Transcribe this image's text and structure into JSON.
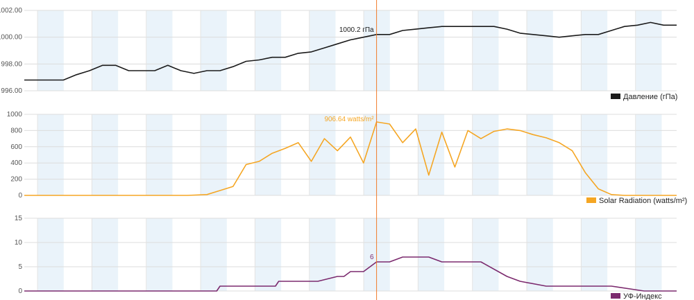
{
  "cursor": {
    "x": 54
  },
  "chart_data": [
    {
      "type": "line",
      "title": "",
      "legend": {
        "label": "Давление (гПа)",
        "color": "#1a1a1a",
        "position": "bottom-right"
      },
      "x": [
        0,
        2,
        4,
        6,
        8,
        10,
        12,
        14,
        16,
        18,
        20,
        22,
        24,
        26,
        28,
        30,
        32,
        34,
        36,
        38,
        40,
        42,
        44,
        46,
        48,
        50,
        52,
        54,
        56,
        58,
        60,
        62,
        64,
        66,
        68,
        70,
        72,
        74,
        76,
        78,
        80,
        82,
        84,
        86,
        88,
        90,
        92,
        94,
        96,
        98,
        100
      ],
      "series": [
        {
          "values": [
            996.8,
            996.8,
            996.8,
            996.8,
            997.2,
            997.5,
            997.9,
            997.9,
            997.5,
            997.5,
            997.5,
            997.9,
            997.5,
            997.3,
            997.5,
            997.5,
            997.8,
            998.2,
            998.3,
            998.5,
            998.5,
            998.8,
            998.9,
            999.2,
            999.5,
            999.8,
            1000.0,
            1000.2,
            1000.2,
            1000.5,
            1000.6,
            1000.7,
            1000.8,
            1000.8,
            1000.8,
            1000.8,
            1000.8,
            1000.6,
            1000.3,
            1000.2,
            1000.1,
            1000.0,
            1000.1,
            1000.2,
            1000.2,
            1000.5,
            1000.8,
            1000.9,
            1001.1,
            1000.9,
            1000.9
          ]
        }
      ],
      "yticks": [
        "996.00",
        "998.00",
        "1000.00",
        "1002.00"
      ],
      "ylim": [
        996,
        1002
      ],
      "cursor_label": "1000.2 гПа",
      "cursor_value": 1000.2,
      "grid": true
    },
    {
      "type": "line",
      "title": "",
      "legend": {
        "label": "Solar Radiation (watts/m²)",
        "color": "#f5a623",
        "position": "bottom-right"
      },
      "x": [
        0,
        5,
        10,
        15,
        20,
        25,
        28,
        30,
        32,
        34,
        36,
        38,
        40,
        42,
        44,
        46,
        48,
        50,
        52,
        54,
        56,
        58,
        60,
        62,
        64,
        66,
        68,
        70,
        72,
        74,
        76,
        78,
        80,
        82,
        84,
        86,
        88,
        90,
        92,
        95,
        100
      ],
      "series": [
        {
          "values": [
            0,
            0,
            0,
            0,
            0,
            0,
            10,
            60,
            110,
            380,
            420,
            520,
            580,
            650,
            420,
            700,
            550,
            720,
            400,
            906,
            880,
            650,
            820,
            250,
            780,
            350,
            800,
            700,
            790,
            820,
            800,
            750,
            710,
            650,
            550,
            280,
            80,
            10,
            0,
            0,
            0
          ]
        }
      ],
      "yticks": [
        "0",
        "200",
        "400",
        "600",
        "800",
        "1000"
      ],
      "ylim": [
        0,
        1000
      ],
      "cursor_label": "906.64 watts/m²",
      "cursor_value": 906.64,
      "grid": true
    },
    {
      "type": "line",
      "title": "",
      "legend": {
        "label": "УФ-Индекс",
        "color": "#7b2a6e",
        "position": "bottom-right"
      },
      "x": [
        0,
        5,
        10,
        15,
        20,
        25,
        29.5,
        30,
        35,
        38.5,
        39,
        45,
        48,
        49,
        50,
        52,
        54,
        56,
        58,
        60,
        62,
        64,
        66,
        68,
        70,
        74,
        76,
        80,
        82,
        85,
        90,
        95,
        100
      ],
      "series": [
        {
          "values": [
            0,
            0,
            0,
            0,
            0,
            0,
            0,
            1,
            1,
            1,
            2,
            2,
            3,
            3,
            4,
            4,
            6,
            6,
            7,
            7,
            7,
            6,
            6,
            6,
            6,
            3,
            2,
            1,
            1,
            1,
            1,
            0,
            0
          ]
        }
      ],
      "yticks": [
        "0",
        "5",
        "10",
        "15"
      ],
      "ylim": [
        0,
        15
      ],
      "cursor_label": "6",
      "cursor_value": 6,
      "grid": true
    }
  ]
}
